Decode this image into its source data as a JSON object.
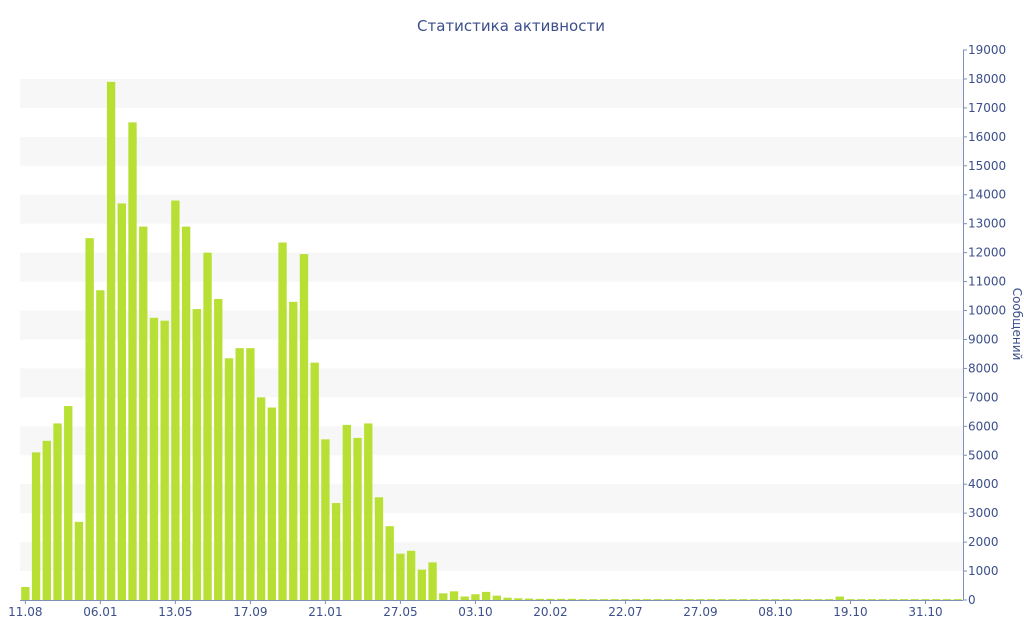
{
  "chart_data": {
    "type": "bar",
    "title": "Статистика активности",
    "ylabel": "Сообщений",
    "xlabel": "",
    "ylim": [
      0,
      19000
    ],
    "ytick_step": 1000,
    "y_axis_side": "right",
    "grid": "horizontal alternating bands",
    "legend": "none",
    "bar_color": "#b8e034",
    "band_color": "#f7f7f7",
    "text_color": "#3c4f8a",
    "x_tick_labels": [
      "11.08",
      "06.01",
      "13.05",
      "17.09",
      "21.01",
      "27.05",
      "03.10",
      "20.02",
      "22.07",
      "27.09",
      "08.10",
      "19.10",
      "31.10"
    ],
    "x_tick_label_bar_index": [
      0,
      7,
      14,
      21,
      28,
      35,
      42,
      49,
      56,
      63,
      70,
      77,
      84
    ],
    "values": [
      450,
      5100,
      5500,
      6100,
      6700,
      2700,
      12500,
      10700,
      17900,
      13700,
      16500,
      12900,
      9750,
      9650,
      13800,
      12900,
      10050,
      12000,
      10400,
      8350,
      8700,
      8700,
      7000,
      6650,
      12350,
      10300,
      11950,
      8200,
      5550,
      3350,
      6050,
      5600,
      6100,
      3550,
      2550,
      1600,
      1700,
      1050,
      1300,
      230,
      300,
      120,
      200,
      280,
      150,
      80,
      60,
      50,
      40,
      40,
      40,
      40,
      30,
      30,
      30,
      30,
      30,
      30,
      30,
      30,
      30,
      30,
      30,
      30,
      30,
      30,
      30,
      30,
      30,
      30,
      30,
      30,
      30,
      30,
      30,
      30,
      120,
      30,
      30,
      30,
      30,
      30,
      30,
      30,
      30,
      30,
      30,
      30
    ]
  }
}
